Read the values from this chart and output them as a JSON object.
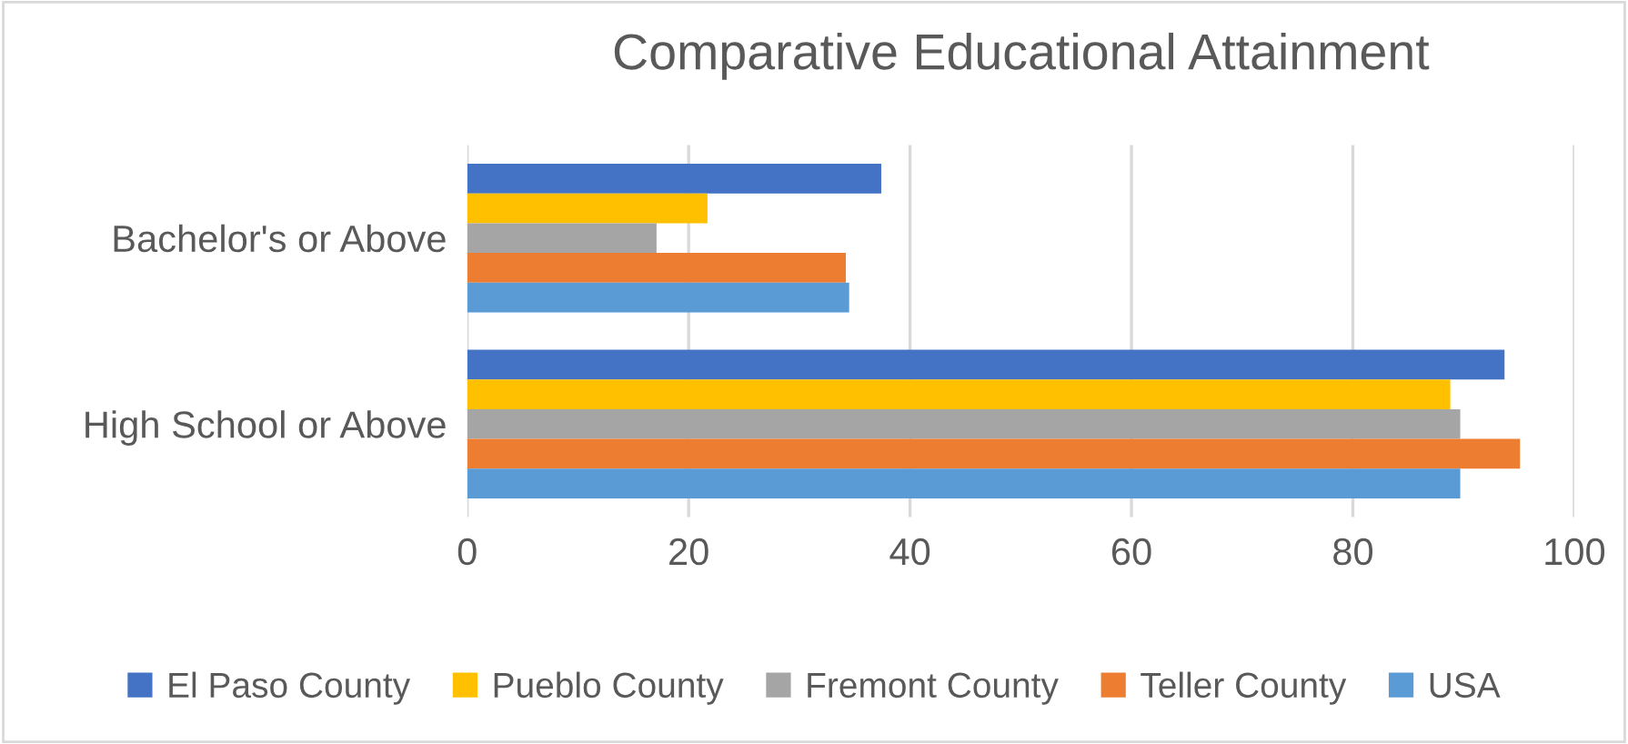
{
  "chart_data": {
    "type": "bar",
    "orientation": "horizontal",
    "title": "Comparative Educational Attainment",
    "categories": [
      "Bachelor's or Above",
      "High School or Above"
    ],
    "series": [
      {
        "name": "El Paso County",
        "color": "#4472c4",
        "values": [
          37.4,
          93.7
        ]
      },
      {
        "name": "Pueblo County",
        "color": "#ffc000",
        "values": [
          21.7,
          88.8
        ]
      },
      {
        "name": "Fremont County",
        "color": "#a5a5a5",
        "values": [
          17.1,
          89.7
        ]
      },
      {
        "name": "Teller County",
        "color": "#ed7d31",
        "values": [
          34.2,
          95.1
        ]
      },
      {
        "name": "USA",
        "color": "#5b9bd5",
        "values": [
          34.5,
          89.7
        ]
      }
    ],
    "xlim": [
      0,
      100
    ],
    "xticks": [
      0,
      20,
      40,
      60,
      80,
      100
    ],
    "grid": "x",
    "legend": "bottom"
  }
}
